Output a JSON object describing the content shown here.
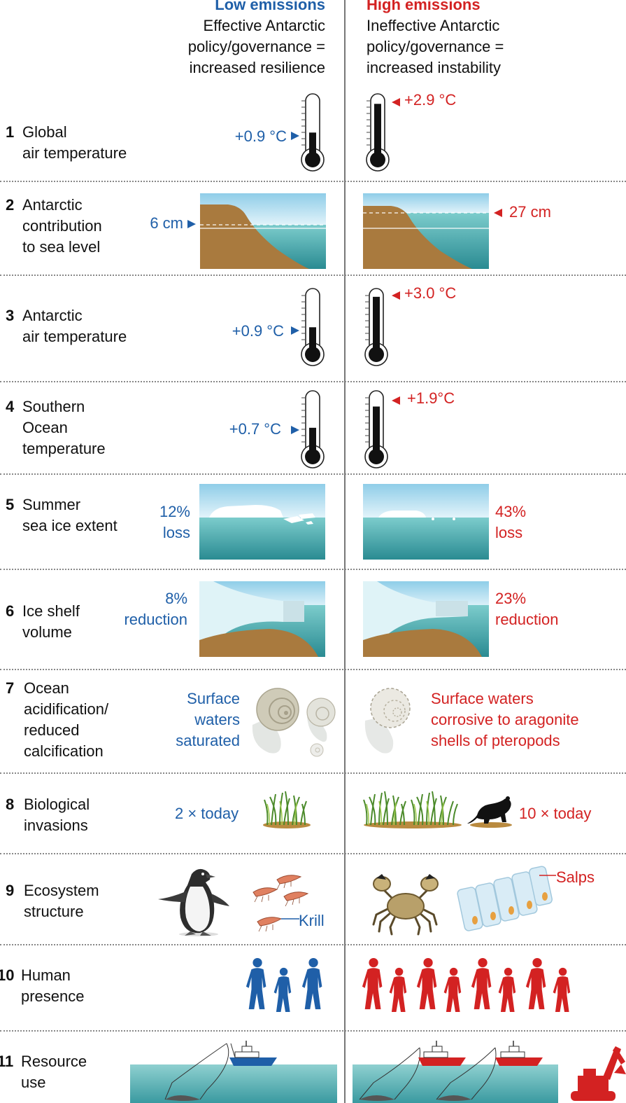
{
  "header": {
    "low": {
      "title": "Low emissions",
      "line1": "Effective Antarctic",
      "line2": "policy/governance =",
      "line3": "increased resilience"
    },
    "high": {
      "title": "High emissions",
      "line1": "Ineffective Antarctic",
      "line2": "policy/governance =",
      "line3": "increased instability"
    }
  },
  "colors": {
    "low": "#1f5fa8",
    "high": "#d32222",
    "water": "#2f9a9c",
    "land": "#a97a3e"
  },
  "rows": [
    {
      "num": "1",
      "label": [
        "Global",
        "air temperature"
      ],
      "low": "+0.9 °C",
      "high": "+2.9 °C"
    },
    {
      "num": "2",
      "label": [
        "Antarctic",
        "contribution",
        "to sea level"
      ],
      "low": "6 cm",
      "high": "27 cm"
    },
    {
      "num": "3",
      "label": [
        "Antarctic",
        "air temperature"
      ],
      "low": "+0.9 °C",
      "high": "+3.0 °C"
    },
    {
      "num": "4",
      "label": [
        "Southern",
        "Ocean",
        "temperature"
      ],
      "low": "+0.7 °C",
      "high": "+1.9°C"
    },
    {
      "num": "5",
      "label": [
        "Summer",
        "sea ice extent"
      ],
      "low": [
        "12%",
        "loss"
      ],
      "high": [
        "43%",
        "loss"
      ]
    },
    {
      "num": "6",
      "label": [
        "Ice shelf",
        "volume"
      ],
      "low": [
        "8%",
        "reduction"
      ],
      "high": [
        "23%",
        "reduction"
      ]
    },
    {
      "num": "7",
      "label": [
        "Ocean",
        "acidification/",
        "reduced",
        "calcification"
      ],
      "low": [
        "Surface",
        "waters",
        "saturated"
      ],
      "high": [
        "Surface waters",
        "corrosive to aragonite",
        "shells of pteropods"
      ]
    },
    {
      "num": "8",
      "label": [
        "Biological",
        "invasions"
      ],
      "low": "2 × today",
      "high": "10 × today"
    },
    {
      "num": "9",
      "label": [
        "Ecosystem",
        "structure"
      ],
      "low": "Krill",
      "high": "Salps"
    },
    {
      "num": "10",
      "label": [
        "Human",
        "presence"
      ]
    },
    {
      "num": "11",
      "label": [
        "Resource",
        "use"
      ]
    }
  ],
  "thermometers": [
    {
      "row": "1",
      "low_level": 0.35,
      "high_level": 0.85
    },
    {
      "row": "3",
      "low_level": 0.35,
      "high_level": 0.88
    },
    {
      "row": "4",
      "low_level": 0.38,
      "high_level": 0.75
    }
  ],
  "people": {
    "low_count": 3,
    "high_count": 8
  },
  "icons": {
    "thermometer": "thermometer-icon",
    "person": "person-icon",
    "ship": "ship-icon",
    "excavator": "excavator-icon",
    "penguin": "penguin-icon",
    "krill": "krill-icon",
    "crab": "crab-icon",
    "rat": "rat-icon",
    "grass": "grass-icon",
    "shell": "pteropod-shell-icon",
    "salp": "salp-icon"
  }
}
